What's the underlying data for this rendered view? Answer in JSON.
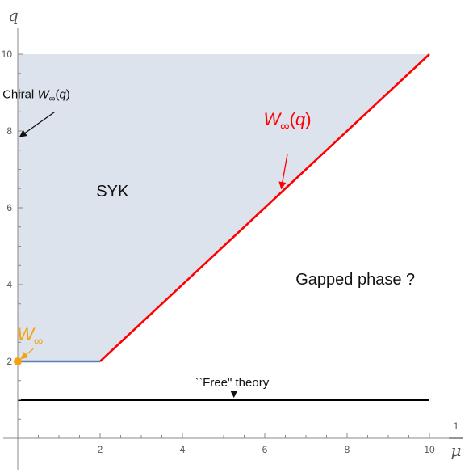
{
  "chart_data": {
    "type": "line",
    "xlabel": {
      "numerator": "1",
      "denominator": "μ"
    },
    "ylabel": "q",
    "xlim": [
      0,
      10.3
    ],
    "ylim": [
      0,
      10
    ],
    "xticks": [
      2,
      4,
      6,
      8,
      10
    ],
    "yticks": [
      2,
      4,
      6,
      8,
      10
    ],
    "xtick_labels": [
      "2",
      "4",
      "6",
      "8",
      "10"
    ],
    "ytick_labels": [
      "2",
      "4",
      "6",
      "8",
      "10"
    ],
    "grid": false,
    "regions": [
      {
        "label": "SYK",
        "color": "#dde3ec",
        "polygon": [
          [
            0,
            10
          ],
          [
            10,
            10
          ],
          [
            2,
            2
          ],
          [
            0,
            2
          ]
        ]
      }
    ],
    "series": [
      {
        "color": "#ff0000",
        "x": [
          2,
          10
        ],
        "y": [
          2,
          10
        ]
      },
      {
        "color": "#5b7fb5",
        "x": [
          0,
          2
        ],
        "y": [
          2,
          2
        ]
      },
      {
        "color": "#000000",
        "x": [
          0,
          10
        ],
        "y": [
          1,
          1
        ]
      }
    ],
    "points": [
      {
        "label": "W∞",
        "x": 0,
        "y": 2,
        "color": "#f4a30e"
      }
    ],
    "annotations": [
      {
        "kind": "math",
        "base": "W",
        "sub": "∞",
        "suffix": "(q)",
        "color": "#ff0000",
        "text_at": [
          6.55,
          8.15
        ],
        "arrow_from": [
          6.55,
          7.4
        ],
        "arrow_to": [
          6.4,
          6.5
        ]
      },
      {
        "kind": "math",
        "prefix": "Chiral ",
        "base": "W",
        "sub": "∞",
        "suffix": "(q)",
        "color": "#111111",
        "text_at": [
          0.45,
          8.85
        ],
        "arrow_from": [
          0.9,
          8.5
        ],
        "arrow_to": [
          0.05,
          7.85
        ]
      },
      {
        "kind": "math",
        "base": "W",
        "sub": "∞",
        "color": "#f4a30e",
        "text_at": [
          0.3,
          2.55
        ],
        "arrow_from": [
          0.38,
          2.33
        ],
        "arrow_to": [
          0.08,
          2.07
        ]
      },
      {
        "kind": "text",
        "text": "``Free\" theory",
        "color": "#111111",
        "text_at": [
          5.2,
          1.35
        ],
        "arrow_from": [
          5.25,
          1.22
        ],
        "arrow_to": [
          5.25,
          1.07
        ]
      },
      {
        "kind": "region",
        "text": "SYK",
        "text_at": [
          2.3,
          6.3
        ]
      },
      {
        "kind": "region",
        "text": "Gapped phase ?",
        "text_at": [
          8.2,
          4.0
        ]
      }
    ]
  }
}
